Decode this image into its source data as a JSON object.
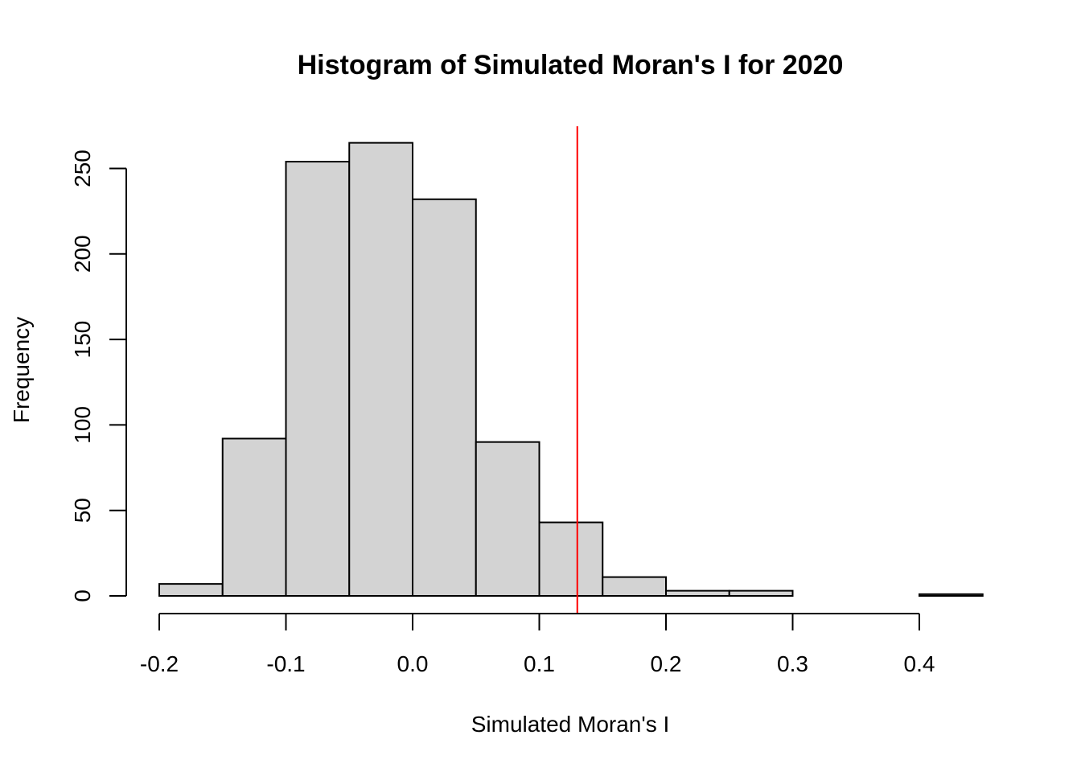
{
  "chart_data": {
    "type": "bar",
    "title": "Histogram of Simulated Moran's I for 2020",
    "xlabel": "Simulated Moran's I",
    "ylabel": "Frequency",
    "bins": [
      {
        "x0": -0.2,
        "x1": -0.15,
        "count": 7
      },
      {
        "x0": -0.15,
        "x1": -0.1,
        "count": 92
      },
      {
        "x0": -0.1,
        "x1": -0.05,
        "count": 254
      },
      {
        "x0": -0.05,
        "x1": 0.0,
        "count": 265
      },
      {
        "x0": 0.0,
        "x1": 0.05,
        "count": 232
      },
      {
        "x0": 0.05,
        "x1": 0.1,
        "count": 90
      },
      {
        "x0": 0.1,
        "x1": 0.15,
        "count": 43
      },
      {
        "x0": 0.15,
        "x1": 0.2,
        "count": 11
      },
      {
        "x0": 0.2,
        "x1": 0.25,
        "count": 3
      },
      {
        "x0": 0.25,
        "x1": 0.3,
        "count": 3
      },
      {
        "x0": 0.3,
        "x1": 0.35,
        "count": 0
      },
      {
        "x0": 0.35,
        "x1": 0.4,
        "count": 0
      },
      {
        "x0": 0.4,
        "x1": 0.45,
        "count": 1
      }
    ],
    "x_ticks": [
      -0.2,
      -0.1,
      0.0,
      0.1,
      0.2,
      0.3,
      0.4
    ],
    "x_tick_labels": [
      "-0.2",
      "-0.1",
      "0.0",
      "0.1",
      "0.2",
      "0.3",
      "0.4"
    ],
    "y_ticks": [
      0,
      50,
      100,
      150,
      200,
      250
    ],
    "y_tick_labels": [
      "0",
      "50",
      "100",
      "150",
      "200",
      "250"
    ],
    "reference_line": {
      "x": 0.13,
      "color": "#ff0000"
    },
    "bar_fill": "#d3d3d3",
    "bar_stroke": "#000000",
    "grid": false,
    "legend": "none"
  }
}
